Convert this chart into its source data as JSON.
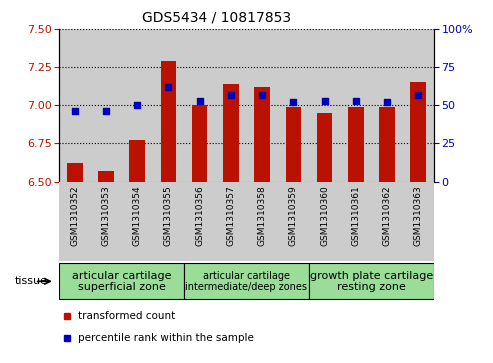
{
  "title": "GDS5434 / 10817853",
  "samples": [
    "GSM1310352",
    "GSM1310353",
    "GSM1310354",
    "GSM1310355",
    "GSM1310356",
    "GSM1310357",
    "GSM1310358",
    "GSM1310359",
    "GSM1310360",
    "GSM1310361",
    "GSM1310362",
    "GSM1310363"
  ],
  "transformed_count": [
    6.62,
    6.57,
    6.77,
    7.29,
    7.0,
    7.14,
    7.12,
    6.99,
    6.95,
    6.99,
    6.99,
    7.15
  ],
  "percentile_rank": [
    46,
    46,
    50,
    62,
    53,
    57,
    57,
    52,
    53,
    53,
    52,
    57
  ],
  "ylim_left": [
    6.5,
    7.5
  ],
  "ylim_right": [
    0,
    100
  ],
  "yticks_left": [
    6.5,
    6.75,
    7.0,
    7.25,
    7.5
  ],
  "yticks_right": [
    0,
    25,
    50,
    75,
    100
  ],
  "bar_color": "#bb1100",
  "dot_color": "#0000bb",
  "col_bg_color": "#cccccc",
  "tissue_bg_color": "#99dd99",
  "tissue_groups": [
    {
      "label": "articular cartilage\nsuperficial zone",
      "start": 0,
      "end": 4
    },
    {
      "label": "articular cartilage\nintermediate/deep zones",
      "start": 4,
      "end": 8
    },
    {
      "label": "growth plate cartilage\nresting zone",
      "start": 8,
      "end": 12
    }
  ],
  "tissue_label": "tissue",
  "legend_transformed": "transformed count",
  "legend_percentile": "percentile rank within the sample",
  "bar_width": 0.5,
  "dot_size": 25,
  "group_font_sizes": [
    8,
    7,
    8
  ]
}
